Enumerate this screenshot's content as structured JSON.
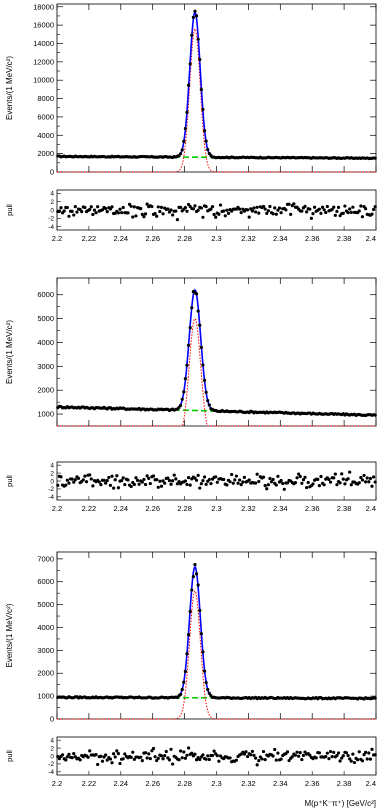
{
  "figure": {
    "x_axis_title": "M(p⁺K⁻π⁺) [GeV/c²]",
    "main_ylabel": "Events/(1 MeV/c²)",
    "pull_ylabel": "pull"
  },
  "colors": {
    "data_points": "#000000",
    "total_fit": "#0000ff",
    "signal": "#ff0000",
    "background": "#00cc00",
    "axes": "#000000"
  },
  "chart_data": [
    {
      "type": "scatter",
      "title": "",
      "xlabel": "",
      "ylabel": "Events/(1 MeV/c²)",
      "xlim": [
        2.2,
        2.4
      ],
      "ylim": [
        0,
        18300
      ],
      "xticks": [
        2.2,
        2.22,
        2.24,
        2.26,
        2.28,
        2.3,
        2.32,
        2.34,
        2.36,
        2.38,
        2.4
      ],
      "xtick_labels": [
        "2.2",
        "2.22",
        "2.24",
        "2.26",
        "2.28",
        "2.3",
        "2.32",
        "2.34",
        "2.36",
        "2.38",
        "2.4"
      ],
      "yticks": [
        0,
        2000,
        4000,
        6000,
        8000,
        10000,
        12000,
        14000,
        16000,
        18000
      ],
      "ytick_labels": [
        "0",
        "2000",
        "4000",
        "6000",
        "8000",
        "10000",
        "12000",
        "14000",
        "16000",
        "18000"
      ],
      "model": {
        "bkg_left": 1700,
        "bkg_right": 1500,
        "peak_mean": 2.2865,
        "peak_sigma": 0.0033,
        "peak_height": 15600,
        "peak_obs": 17400
      },
      "pull": {
        "ylim": [
          -4.8,
          4.8
        ],
        "yticks": [
          -4,
          -2,
          0,
          2,
          4
        ],
        "ytick_labels": [
          "-4",
          "-2",
          "0",
          "2",
          "4"
        ]
      },
      "series": []
    },
    {
      "type": "scatter",
      "title": "",
      "xlabel": "",
      "ylabel": "Events/(1 MeV/c²)",
      "xlim": [
        2.2,
        2.4
      ],
      "ylim": [
        500,
        6700
      ],
      "xticks": [
        2.2,
        2.22,
        2.24,
        2.26,
        2.28,
        2.3,
        2.32,
        2.34,
        2.36,
        2.38,
        2.4
      ],
      "xtick_labels": [
        "2.2",
        "2.22",
        "2.24",
        "2.26",
        "2.28",
        "2.3",
        "2.32",
        "2.34",
        "2.36",
        "2.38",
        "2.4"
      ],
      "yticks": [
        1000,
        2000,
        3000,
        4000,
        5000,
        6000
      ],
      "ytick_labels": [
        "1000",
        "2000",
        "3000",
        "4000",
        "5000",
        "6000"
      ],
      "model": {
        "bkg_left": 1300,
        "bkg_right": 950,
        "peak_mean": 2.2865,
        "peak_sigma": 0.0036,
        "peak_height": 5000,
        "peak_obs": 6200
      },
      "pull": {
        "ylim": [
          -4.8,
          4.8
        ],
        "yticks": [
          -4,
          -2,
          0,
          2,
          4
        ],
        "ytick_labels": [
          "-4",
          "-2",
          "0",
          "2",
          "4"
        ]
      },
      "series": []
    },
    {
      "type": "scatter",
      "title": "",
      "xlabel": "M(p⁺K⁻π⁺) [GeV/c²]",
      "ylabel": "Events/(1 MeV/c²)",
      "xlim": [
        2.2,
        2.4
      ],
      "ylim": [
        0,
        7300
      ],
      "xticks": [
        2.2,
        2.22,
        2.24,
        2.26,
        2.28,
        2.3,
        2.32,
        2.34,
        2.36,
        2.38,
        2.4
      ],
      "xtick_labels": [
        "2.2",
        "2.22",
        "2.24",
        "2.26",
        "2.28",
        "2.3",
        "2.32",
        "2.34",
        "2.36",
        "2.38",
        "2.4"
      ],
      "yticks": [
        0,
        1000,
        2000,
        3000,
        4000,
        5000,
        6000,
        7000
      ],
      "ytick_labels": [
        "0",
        "1000",
        "2000",
        "3000",
        "4000",
        "5000",
        "6000",
        "7000"
      ],
      "model": {
        "bkg_left": 950,
        "bkg_right": 900,
        "peak_mean": 2.2865,
        "peak_sigma": 0.0034,
        "peak_height": 5600,
        "peak_obs": 6650
      },
      "pull": {
        "ylim": [
          -4.8,
          4.8
        ],
        "yticks": [
          -4,
          -2,
          0,
          2,
          4
        ],
        "ytick_labels": [
          "-4",
          "-2",
          "0",
          "2",
          "4"
        ]
      },
      "series": []
    }
  ]
}
